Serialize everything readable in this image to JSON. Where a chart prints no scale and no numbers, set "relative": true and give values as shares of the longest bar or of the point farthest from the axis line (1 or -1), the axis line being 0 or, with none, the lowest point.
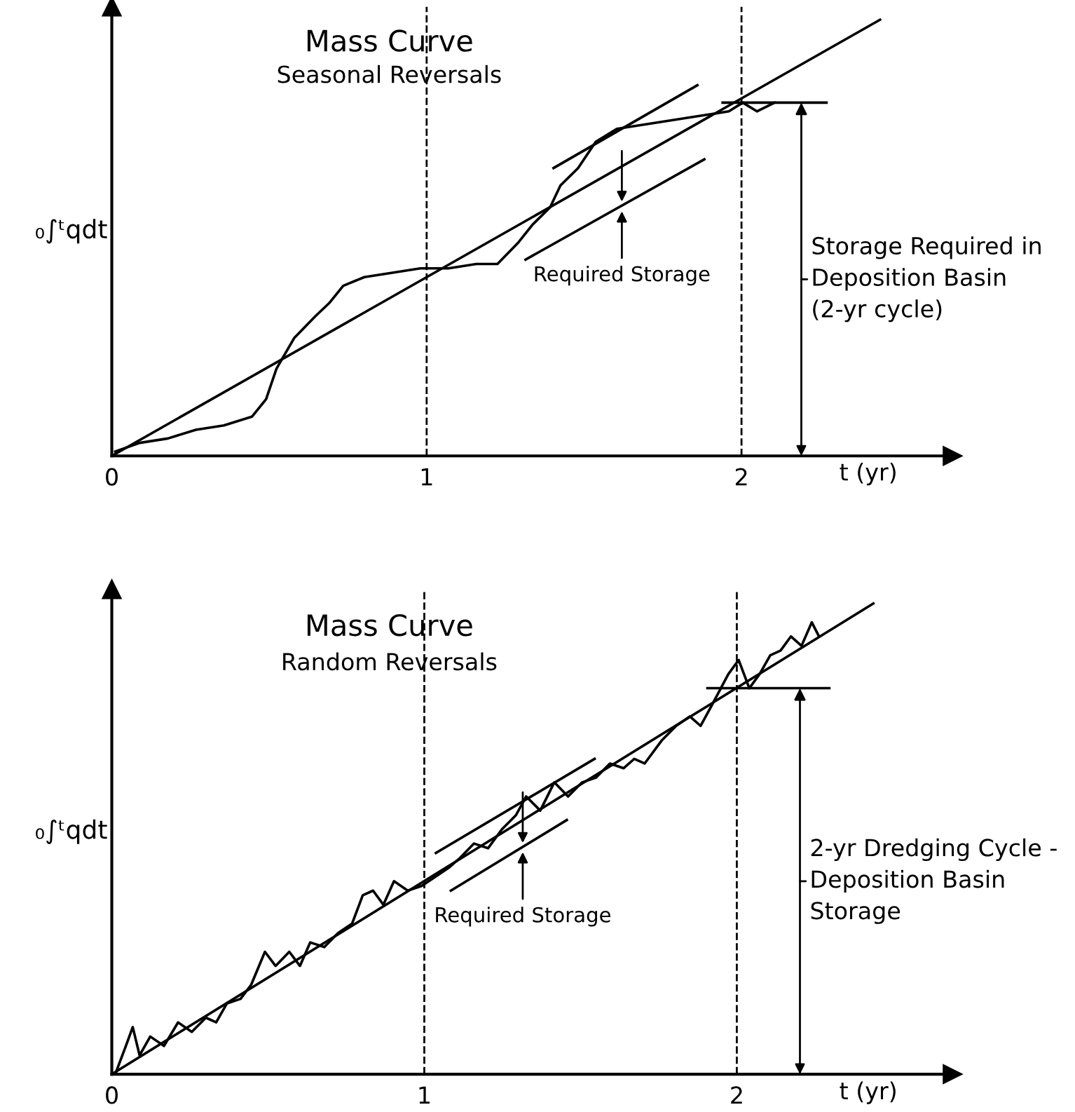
{
  "chart_data": [
    {
      "type": "line",
      "title": "Mass Curve",
      "subtitle": "Seasonal Reversals",
      "xlabel": "t (yr)",
      "ylabel": "₀∫ᵗqdt",
      "relative": true,
      "xlim": [
        0,
        2.67
      ],
      "xticks": [
        0,
        1,
        2
      ],
      "grid": false,
      "legend": false,
      "series": [
        {
          "color": "#000000",
          "x": [
            0.011,
            0.089,
            0.178,
            0.267,
            0.356,
            0.445,
            0.49,
            0.523,
            0.579,
            0.646,
            0.69,
            0.735,
            0.802,
            0.891,
            0.98,
            1.069,
            1.158,
            1.225,
            1.292,
            1.336,
            1.392,
            1.425,
            1.481,
            1.537,
            1.604,
            1.693,
            1.782,
            1.871,
            1.96,
            2.004,
            2.049,
            2.105
          ],
          "values": [
            0.01,
            0.03,
            0.04,
            0.06,
            0.07,
            0.09,
            0.13,
            0.2,
            0.27,
            0.32,
            0.35,
            0.39,
            0.41,
            0.42,
            0.43,
            0.43,
            0.44,
            0.44,
            0.49,
            0.53,
            0.57,
            0.62,
            0.66,
            0.72,
            0.75,
            0.76,
            0.77,
            0.78,
            0.79,
            0.81,
            0.79,
            0.81
          ]
        },
        {
          "color": "#000000",
          "x": [
            0,
            2.44
          ],
          "values": [
            0,
            1
          ]
        },
        {
          "color": "#000000",
          "x": [
            1.403,
            1.86
          ],
          "values": [
            0.66,
            0.85
          ]
        },
        {
          "color": "#000000",
          "x": [
            1.314,
            1.882
          ],
          "values": [
            0.45,
            0.68
          ]
        },
        {
          "color": "#000000",
          "x": [
            1.94,
            2.27
          ],
          "values": [
            0.81,
            0.81
          ]
        }
      ],
      "ref_lines": [
        {
          "axis": "x",
          "value": 1,
          "color": "#000000",
          "line_style": "dashed"
        },
        {
          "axis": "x",
          "value": 2,
          "color": "#000000",
          "line_style": "dashed"
        }
      ],
      "annotations": [
        {
          "text": "Required Storage",
          "x": 1.62,
          "y": 0.57
        },
        {
          "text": "Storage Required in\nDeposition Basin\n(2-yr cycle)",
          "x": 2.19,
          "y": 0.81
        }
      ]
    },
    {
      "type": "line",
      "title": "Mass Curve",
      "subtitle": "Random Reversals",
      "xlabel": "t (yr)",
      "ylabel": "₀∫ᵗqdt",
      "relative": true,
      "xlim": [
        0,
        2.69
      ],
      "xticks": [
        0,
        1,
        2
      ],
      "grid": false,
      "legend": false,
      "series": [
        {
          "color": "#000000",
          "x": [
            0.011,
            0.045,
            0.067,
            0.089,
            0.123,
            0.167,
            0.212,
            0.256,
            0.301,
            0.334,
            0.368,
            0.412,
            0.446,
            0.49,
            0.524,
            0.568,
            0.602,
            0.635,
            0.68,
            0.724,
            0.769,
            0.803,
            0.836,
            0.869,
            0.903,
            0.947,
            0.992,
            1.037,
            1.081,
            1.115,
            1.159,
            1.204,
            1.248,
            1.293,
            1.326,
            1.371,
            1.416,
            1.46,
            1.505,
            1.549,
            1.594,
            1.638,
            1.672,
            1.705,
            1.761,
            1.806,
            1.85,
            1.884,
            1.917,
            1.973,
            2.006,
            2.04,
            2.073,
            2.107,
            2.14,
            2.173,
            2.207,
            2.24,
            2.263
          ],
          "values": [
            0.0,
            0.06,
            0.1,
            0.04,
            0.08,
            0.06,
            0.11,
            0.09,
            0.12,
            0.11,
            0.15,
            0.16,
            0.19,
            0.26,
            0.23,
            0.26,
            0.23,
            0.28,
            0.27,
            0.3,
            0.32,
            0.38,
            0.39,
            0.36,
            0.41,
            0.39,
            0.4,
            0.42,
            0.44,
            0.46,
            0.49,
            0.48,
            0.52,
            0.55,
            0.59,
            0.56,
            0.62,
            0.59,
            0.62,
            0.63,
            0.66,
            0.65,
            0.67,
            0.66,
            0.71,
            0.74,
            0.76,
            0.74,
            0.78,
            0.85,
            0.88,
            0.82,
            0.85,
            0.89,
            0.9,
            0.93,
            0.91,
            0.96,
            0.93
          ]
        },
        {
          "color": "#000000",
          "x": [
            0,
            2.437
          ],
          "values": [
            0,
            1
          ]
        },
        {
          "color": "#000000",
          "x": [
            1.037,
            1.545
          ],
          "values": [
            0.47,
            0.67
          ]
        },
        {
          "color": "#000000",
          "x": [
            1.085,
            1.456
          ],
          "values": [
            0.39,
            0.54
          ]
        },
        {
          "color": "#000000",
          "x": [
            1.906,
            2.296
          ],
          "values": [
            0.82,
            0.82
          ]
        }
      ],
      "ref_lines": [
        {
          "axis": "x",
          "value": 1,
          "color": "#000000",
          "line_style": "dashed"
        },
        {
          "axis": "x",
          "value": 2,
          "color": "#000000",
          "line_style": "dashed"
        }
      ],
      "annotations": [
        {
          "text": "Required Storage",
          "x": 1.315,
          "y": 0.48
        },
        {
          "text": "2-yr Dredging Cycle -\nDeposition Basin\nStorage",
          "x": 2.202,
          "y": 0.82
        }
      ]
    }
  ]
}
